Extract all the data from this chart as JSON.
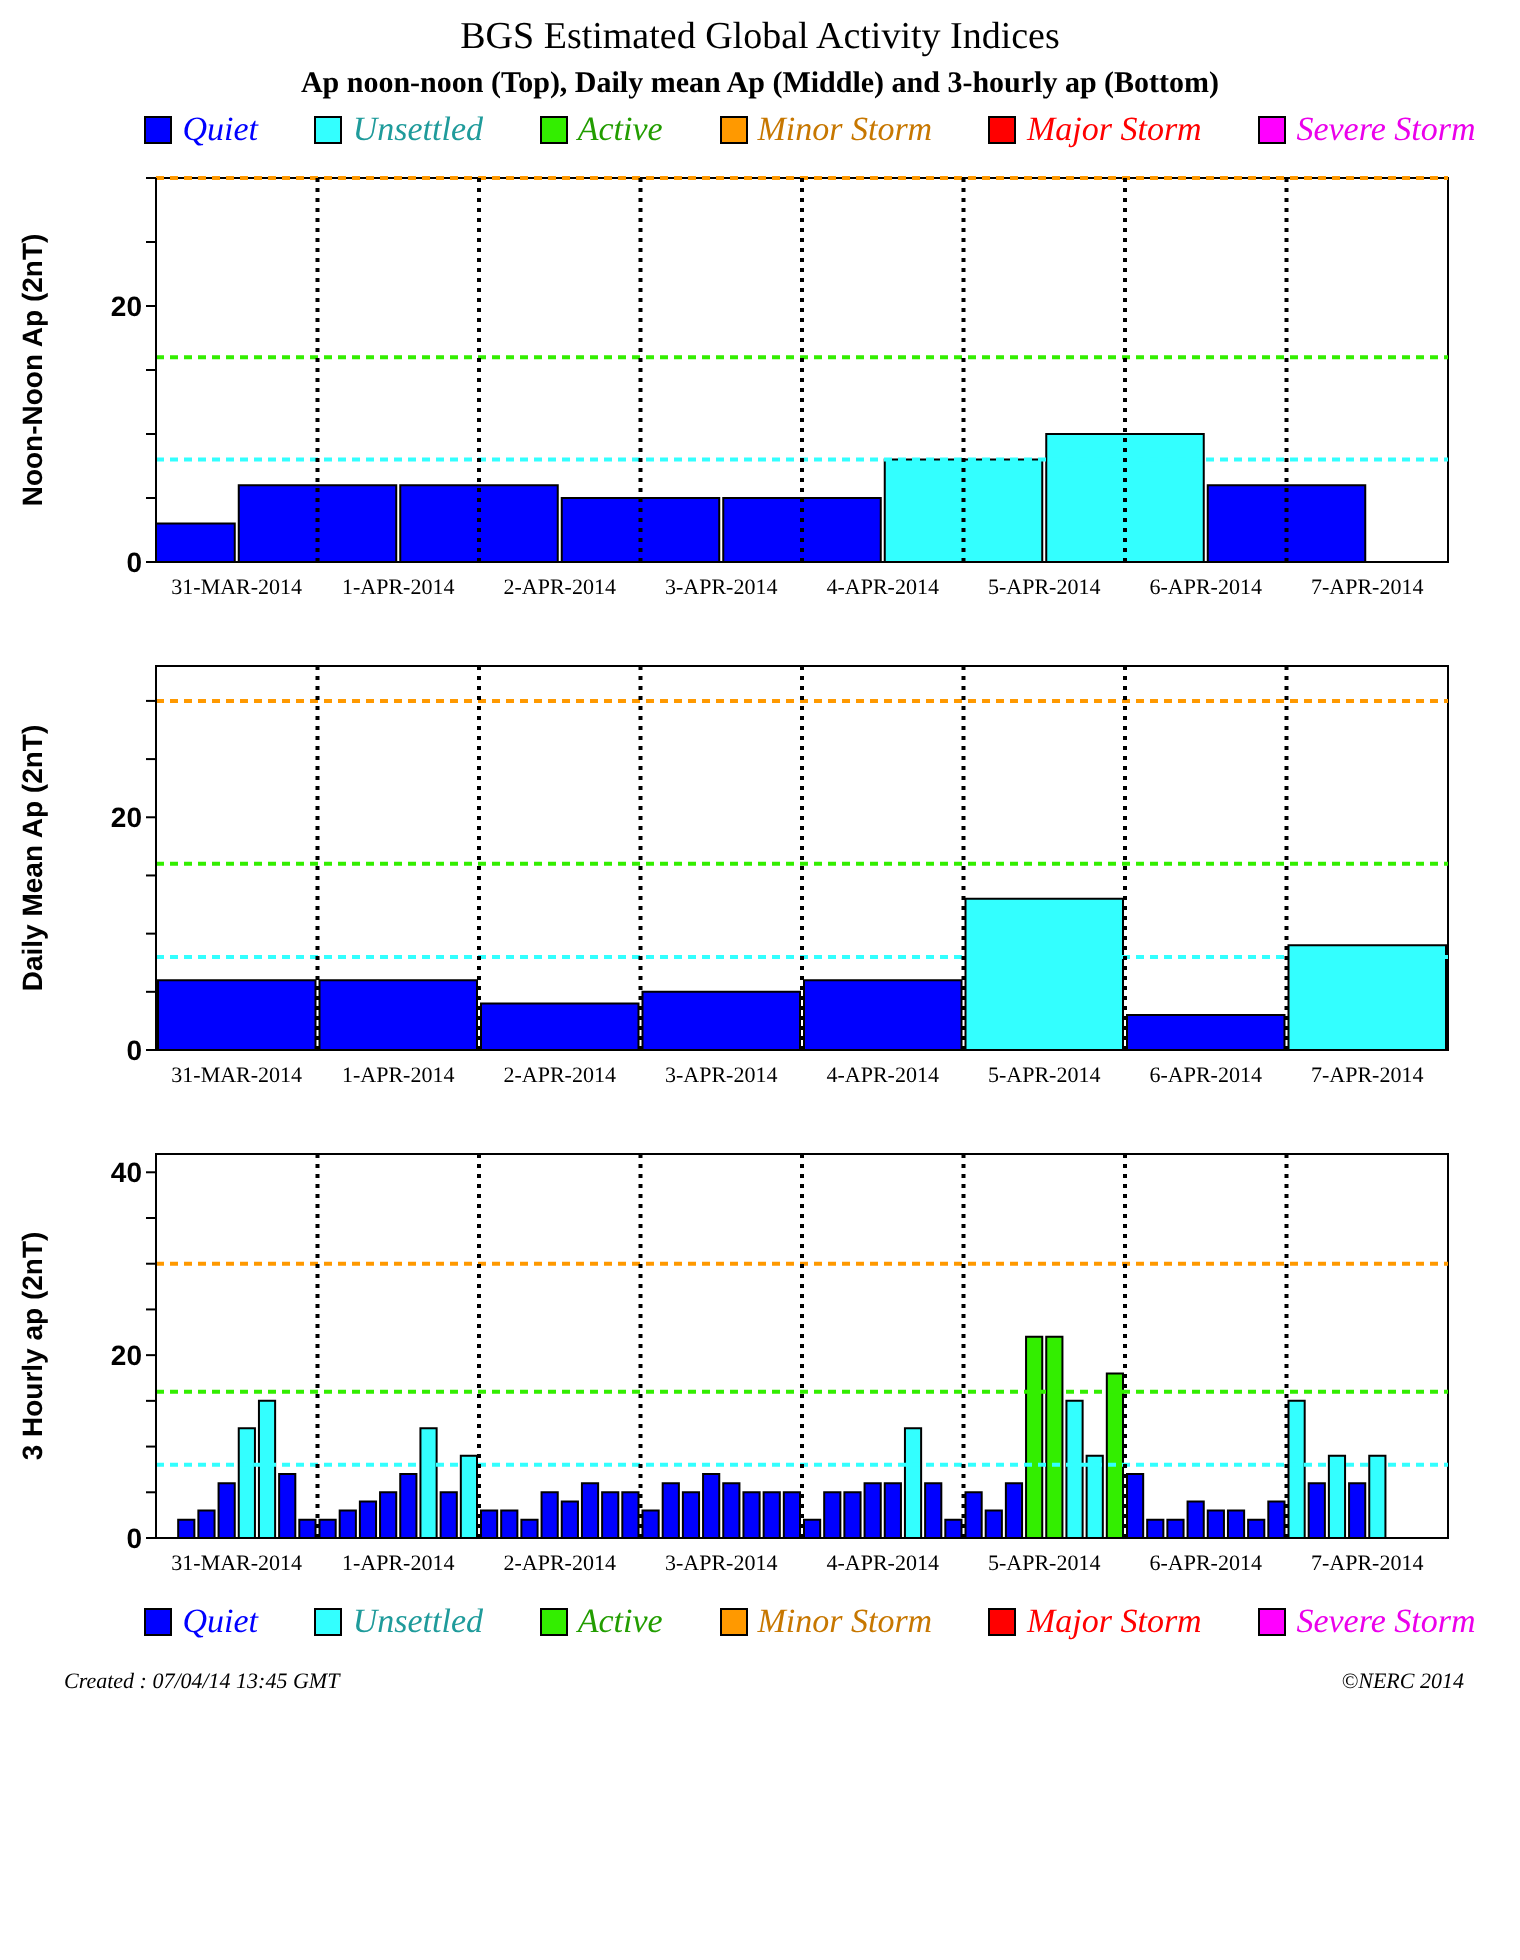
{
  "chart_data": [
    {
      "type": "bar",
      "title": "BGS Estimated Global Activity Indices",
      "subtitle": "Ap noon-noon (Top), Daily mean Ap (Middle) and 3-hourly ap (Bottom)",
      "ylabel": "Noon-Noon Ap (2nT)",
      "stacked": true,
      "legend": "top",
      "x": [
        "2014-03-31",
        "2014-04-01",
        "2014-04-02",
        "2014-04-03",
        "2014-04-04",
        "2014-04-05",
        "2014-04-06",
        "2014-04-07"
      ],
      "series": [
        {
          "name": "Quiet",
          "color": "#0000ff",
          "values": [
            3,
            6,
            6,
            5,
            5,
            null,
            null,
            6
          ]
        },
        {
          "name": "Unsettled",
          "color": "#33ffff",
          "values": [
            null,
            null,
            null,
            null,
            null,
            8,
            10,
            null
          ]
        },
        {
          "name": "Active",
          "color": "#33ee00",
          "values": [
            null,
            null,
            null,
            null,
            null,
            null,
            null,
            null
          ]
        },
        {
          "name": "Minor Storm",
          "color": "#ff9900",
          "values": [
            null,
            null,
            null,
            null,
            null,
            null,
            null,
            null
          ]
        },
        {
          "name": "Major Storm",
          "color": "#ff0000",
          "values": [
            null,
            null,
            null,
            null,
            null,
            null,
            null,
            null
          ]
        },
        {
          "name": "Severe Storm",
          "color": "#ff00ff",
          "values": [
            null,
            null,
            null,
            null,
            null,
            null,
            null,
            null
          ]
        }
      ],
      "xlim": [
        "2014-03-31",
        "2014-04-08"
      ],
      "xticks": [
        {
          "value": "2014-03-31T12:00",
          "label": "31-MAR-2014"
        },
        {
          "value": "2014-04-01T12:00",
          "label": "1-APR-2014"
        },
        {
          "value": "2014-04-02T12:00",
          "label": "2-APR-2014"
        },
        {
          "value": "2014-04-03T12:00",
          "label": "3-APR-2014"
        },
        {
          "value": "2014-04-04T12:00",
          "label": "4-APR-2014"
        },
        {
          "value": "2014-04-05T12:00",
          "label": "5-APR-2014"
        },
        {
          "value": "2014-04-06T12:00",
          "label": "6-APR-2014"
        },
        {
          "value": "2014-04-07T12:00",
          "label": "7-APR-2014"
        }
      ],
      "ylim": [
        0,
        30
      ],
      "yticks": [
        0,
        {
          "value": 5,
          "label": null
        },
        {
          "value": 10,
          "label": null
        },
        {
          "value": 15,
          "label": null
        },
        20,
        {
          "value": 25,
          "label": null
        },
        {
          "value": 30,
          "label": null
        }
      ],
      "ref_lines": [
        {
          "axis": "y",
          "value": 8,
          "color": "#33ffff",
          "line_style": "dashed"
        },
        {
          "axis": "y",
          "value": 16,
          "color": "#33ee00",
          "line_style": "dashed"
        },
        {
          "axis": "y",
          "value": 30,
          "color": "#ff9900",
          "line_style": "dashed"
        },
        {
          "axis": "x",
          "value": "2014-04-01",
          "color": "#000000",
          "line_style": "dotted"
        },
        {
          "axis": "x",
          "value": "2014-04-02",
          "color": "#000000",
          "line_style": "dotted"
        },
        {
          "axis": "x",
          "value": "2014-04-03",
          "color": "#000000",
          "line_style": "dotted"
        },
        {
          "axis": "x",
          "value": "2014-04-04",
          "color": "#000000",
          "line_style": "dotted"
        },
        {
          "axis": "x",
          "value": "2014-04-05",
          "color": "#000000",
          "line_style": "dotted"
        },
        {
          "axis": "x",
          "value": "2014-04-06",
          "color": "#000000",
          "line_style": "dotted"
        },
        {
          "axis": "x",
          "value": "2014-04-07",
          "color": "#000000",
          "line_style": "dotted"
        }
      ]
    },
    {
      "type": "bar",
      "ylabel": "Daily Mean Ap (2nT)",
      "stacked": true,
      "x": [
        "2014-03-31T12:00",
        "2014-04-01T12:00",
        "2014-04-02T12:00",
        "2014-04-03T12:00",
        "2014-04-04T12:00",
        "2014-04-05T12:00",
        "2014-04-06T12:00",
        "2014-04-07T12:00"
      ],
      "series": [
        {
          "color": "#0000ff",
          "values": [
            6,
            6,
            4,
            5,
            6,
            null,
            3,
            null
          ]
        },
        {
          "color": "#33ffff",
          "values": [
            null,
            null,
            null,
            null,
            null,
            13,
            null,
            9
          ]
        }
      ],
      "xlim": [
        "2014-03-31",
        "2014-04-08"
      ],
      "xticks": [
        {
          "value": "2014-03-31T12:00",
          "label": "31-MAR-2014"
        },
        {
          "value": "2014-04-01T12:00",
          "label": "1-APR-2014"
        },
        {
          "value": "2014-04-02T12:00",
          "label": "2-APR-2014"
        },
        {
          "value": "2014-04-03T12:00",
          "label": "3-APR-2014"
        },
        {
          "value": "2014-04-04T12:00",
          "label": "4-APR-2014"
        },
        {
          "value": "2014-04-05T12:00",
          "label": "5-APR-2014"
        },
        {
          "value": "2014-04-06T12:00",
          "label": "6-APR-2014"
        },
        {
          "value": "2014-04-07T12:00",
          "label": "7-APR-2014"
        }
      ],
      "ylim": [
        0,
        33
      ],
      "yticks": [
        0,
        {
          "value": 5,
          "label": null
        },
        {
          "value": 10,
          "label": null
        },
        {
          "value": 15,
          "label": null
        },
        20,
        {
          "value": 25,
          "label": null
        },
        {
          "value": 30,
          "label": null
        }
      ],
      "ref_lines": [
        {
          "axis": "y",
          "value": 8,
          "color": "#33ffff",
          "line_style": "dashed"
        },
        {
          "axis": "y",
          "value": 16,
          "color": "#33ee00",
          "line_style": "dashed"
        },
        {
          "axis": "y",
          "value": 30,
          "color": "#ff9900",
          "line_style": "dashed"
        },
        {
          "axis": "x",
          "value": "2014-04-01",
          "color": "#000000",
          "line_style": "dotted"
        },
        {
          "axis": "x",
          "value": "2014-04-02",
          "color": "#000000",
          "line_style": "dotted"
        },
        {
          "axis": "x",
          "value": "2014-04-03",
          "color": "#000000",
          "line_style": "dotted"
        },
        {
          "axis": "x",
          "value": "2014-04-04",
          "color": "#000000",
          "line_style": "dotted"
        },
        {
          "axis": "x",
          "value": "2014-04-05",
          "color": "#000000",
          "line_style": "dotted"
        },
        {
          "axis": "x",
          "value": "2014-04-06",
          "color": "#000000",
          "line_style": "dotted"
        },
        {
          "axis": "x",
          "value": "2014-04-07",
          "color": "#000000",
          "line_style": "dotted"
        }
      ]
    },
    {
      "type": "bar",
      "ylabel": "3 Hourly ap (2nT)",
      "stacked": true,
      "legend": "bottom",
      "annotations": [
        "Created : 07/04/14 13:45 GMT",
        "©NERC 2014"
      ],
      "x": [
        "2014-03-31T04:30",
        "2014-03-31T07:30",
        "2014-03-31T10:30",
        "2014-03-31T13:30",
        "2014-03-31T16:30",
        "2014-03-31T19:30",
        "2014-03-31T22:30",
        "2014-04-01T01:30",
        "2014-04-01T04:30",
        "2014-04-01T07:30",
        "2014-04-01T10:30",
        "2014-04-01T13:30",
        "2014-04-01T16:30",
        "2014-04-01T19:30",
        "2014-04-01T22:30",
        "2014-04-02T01:30",
        "2014-04-02T04:30",
        "2014-04-02T07:30",
        "2014-04-02T10:30",
        "2014-04-02T13:30",
        "2014-04-02T16:30",
        "2014-04-02T19:30",
        "2014-04-02T22:30",
        "2014-04-03T01:30",
        "2014-04-03T04:30",
        "2014-04-03T07:30",
        "2014-04-03T10:30",
        "2014-04-03T13:30",
        "2014-04-03T16:30",
        "2014-04-03T19:30",
        "2014-04-03T22:30",
        "2014-04-04T01:30",
        "2014-04-04T04:30",
        "2014-04-04T07:30",
        "2014-04-04T10:30",
        "2014-04-04T13:30",
        "2014-04-04T16:30",
        "2014-04-04T19:30",
        "2014-04-04T22:30",
        "2014-04-05T01:30",
        "2014-04-05T04:30",
        "2014-04-05T07:30",
        "2014-04-05T10:30",
        "2014-04-05T13:30",
        "2014-04-05T16:30",
        "2014-04-05T19:30",
        "2014-04-05T22:30",
        "2014-04-06T01:30",
        "2014-04-06T04:30",
        "2014-04-06T07:30",
        "2014-04-06T10:30",
        "2014-04-06T13:30",
        "2014-04-06T16:30",
        "2014-04-06T19:30",
        "2014-04-06T22:30",
        "2014-04-07T01:30",
        "2014-04-07T04:30",
        "2014-04-07T07:30",
        "2014-04-07T10:30",
        "2014-04-07T13:30"
      ],
      "series": [
        {
          "name": "Quiet",
          "color": "#0000ff",
          "values": [
            2,
            3,
            6,
            null,
            null,
            7,
            2,
            2,
            3,
            4,
            5,
            7,
            null,
            5,
            null,
            3,
            3,
            2,
            5,
            4,
            6,
            5,
            5,
            3,
            6,
            5,
            7,
            6,
            5,
            5,
            5,
            2,
            5,
            5,
            6,
            6,
            null,
            6,
            2,
            5,
            3,
            6,
            null,
            null,
            null,
            null,
            null,
            7,
            2,
            2,
            4,
            3,
            3,
            2,
            4,
            null,
            6,
            null,
            6,
            null
          ]
        },
        {
          "name": "Unsettled",
          "color": "#33ffff",
          "values": [
            null,
            null,
            null,
            12,
            15,
            null,
            null,
            null,
            null,
            null,
            null,
            null,
            12,
            null,
            9,
            null,
            null,
            null,
            null,
            null,
            null,
            null,
            null,
            null,
            null,
            null,
            null,
            null,
            null,
            null,
            null,
            null,
            null,
            null,
            null,
            null,
            12,
            null,
            null,
            null,
            null,
            null,
            null,
            null,
            15,
            9,
            null,
            null,
            null,
            null,
            null,
            null,
            null,
            null,
            null,
            15,
            null,
            9,
            null,
            9
          ]
        },
        {
          "name": "Active",
          "color": "#33ee00",
          "values": [
            null,
            null,
            null,
            null,
            null,
            null,
            null,
            null,
            null,
            null,
            null,
            null,
            null,
            null,
            null,
            null,
            null,
            null,
            null,
            null,
            null,
            null,
            null,
            null,
            null,
            null,
            null,
            null,
            null,
            null,
            null,
            null,
            null,
            null,
            null,
            null,
            null,
            null,
            null,
            null,
            null,
            null,
            22,
            22,
            null,
            null,
            18,
            null,
            null,
            null,
            null,
            null,
            null,
            null,
            null,
            null,
            null,
            null,
            null,
            null
          ]
        },
        {
          "name": "Minor Storm",
          "color": "#ff9900",
          "values": [
            null,
            null,
            null,
            null,
            null,
            null,
            null,
            null,
            null,
            null,
            null,
            null,
            null,
            null,
            null,
            null,
            null,
            null,
            null,
            null,
            null,
            null,
            null,
            null,
            null,
            null,
            null,
            null,
            null,
            null,
            null,
            null,
            null,
            null,
            null,
            null,
            null,
            null,
            null,
            null,
            null,
            null,
            null,
            null,
            null,
            null,
            null,
            null,
            null,
            null,
            null,
            null,
            null,
            null,
            null,
            null,
            null,
            null,
            null,
            null
          ]
        },
        {
          "name": "Major Storm",
          "color": "#ff0000",
          "values": [
            null,
            null,
            null,
            null,
            null,
            null,
            null,
            null,
            null,
            null,
            null,
            null,
            null,
            null,
            null,
            null,
            null,
            null,
            null,
            null,
            null,
            null,
            null,
            null,
            null,
            null,
            null,
            null,
            null,
            null,
            null,
            null,
            null,
            null,
            null,
            null,
            null,
            null,
            null,
            null,
            null,
            null,
            null,
            null,
            null,
            null,
            null,
            null,
            null,
            null,
            null,
            null,
            null,
            null,
            null,
            null,
            null,
            null,
            null,
            null
          ]
        },
        {
          "name": "Severe Storm",
          "color": "#ff00ff",
          "values": [
            null,
            null,
            null,
            null,
            null,
            null,
            null,
            null,
            null,
            null,
            null,
            null,
            null,
            null,
            null,
            null,
            null,
            null,
            null,
            null,
            null,
            null,
            null,
            null,
            null,
            null,
            null,
            null,
            null,
            null,
            null,
            null,
            null,
            null,
            null,
            null,
            null,
            null,
            null,
            null,
            null,
            null,
            null,
            null,
            null,
            null,
            null,
            null,
            null,
            null,
            null,
            null,
            null,
            null,
            null,
            null,
            null,
            null,
            null,
            null
          ]
        }
      ],
      "xlim": [
        "2014-03-31",
        "2014-04-08"
      ],
      "xticks": [
        {
          "value": "2014-03-31T12:00",
          "label": "31-MAR-2014"
        },
        {
          "value": "2014-04-01T12:00",
          "label": "1-APR-2014"
        },
        {
          "value": "2014-04-02T12:00",
          "label": "2-APR-2014"
        },
        {
          "value": "2014-04-03T12:00",
          "label": "3-APR-2014"
        },
        {
          "value": "2014-04-04T12:00",
          "label": "4-APR-2014"
        },
        {
          "value": "2014-04-05T12:00",
          "label": "5-APR-2014"
        },
        {
          "value": "2014-04-06T12:00",
          "label": "6-APR-2014"
        },
        {
          "value": "2014-04-07T12:00",
          "label": "7-APR-2014"
        }
      ],
      "ylim": [
        0,
        42
      ],
      "yticks": [
        0,
        {
          "value": 5,
          "label": null
        },
        {
          "value": 10,
          "label": null
        },
        {
          "value": 15,
          "label": null
        },
        20,
        {
          "value": 25,
          "label": null
        },
        {
          "value": 30,
          "label": null
        },
        {
          "value": 35,
          "label": null
        },
        40
      ],
      "ref_lines": [
        {
          "axis": "y",
          "value": 8,
          "color": "#33ffff",
          "line_style": "dashed"
        },
        {
          "axis": "y",
          "value": 16,
          "color": "#33ee00",
          "line_style": "dashed"
        },
        {
          "axis": "y",
          "value": 30,
          "color": "#ff9900",
          "line_style": "dashed"
        },
        {
          "axis": "x",
          "value": "2014-04-01",
          "color": "#000000",
          "line_style": "dotted"
        },
        {
          "axis": "x",
          "value": "2014-04-02",
          "color": "#000000",
          "line_style": "dotted"
        },
        {
          "axis": "x",
          "value": "2014-04-03",
          "color": "#000000",
          "line_style": "dotted"
        },
        {
          "axis": "x",
          "value": "2014-04-04",
          "color": "#000000",
          "line_style": "dotted"
        },
        {
          "axis": "x",
          "value": "2014-04-05",
          "color": "#000000",
          "line_style": "dotted"
        },
        {
          "axis": "x",
          "value": "2014-04-06",
          "color": "#000000",
          "line_style": "dotted"
        },
        {
          "axis": "x",
          "value": "2014-04-07",
          "color": "#000000",
          "line_style": "dotted"
        }
      ]
    }
  ]
}
